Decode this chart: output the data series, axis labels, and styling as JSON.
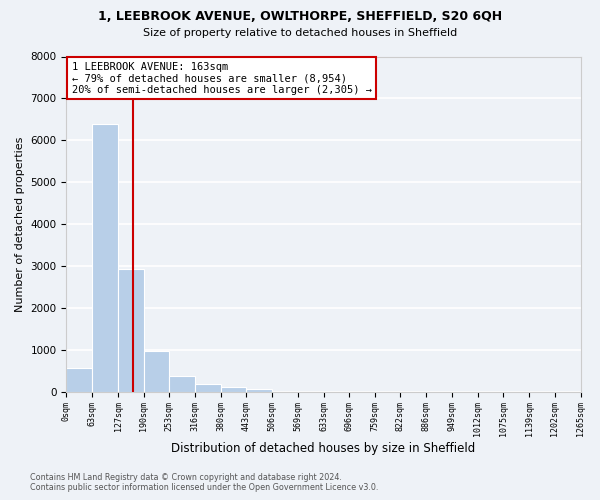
{
  "title": "1, LEEBROOK AVENUE, OWLTHORPE, SHEFFIELD, S20 6QH",
  "subtitle": "Size of property relative to detached houses in Sheffield",
  "xlabel": "Distribution of detached houses by size in Sheffield",
  "ylabel": "Number of detached properties",
  "bar_edges": [
    0,
    63,
    127,
    190,
    253,
    316,
    380,
    443,
    506,
    569,
    633,
    696,
    759,
    822,
    886,
    949,
    1012,
    1075,
    1139,
    1202,
    1265
  ],
  "bar_heights": [
    560,
    6380,
    2930,
    980,
    380,
    190,
    110,
    60,
    0,
    0,
    0,
    0,
    0,
    0,
    0,
    0,
    0,
    0,
    0,
    0
  ],
  "bar_color": "#b8cfe8",
  "bar_edge_color": "#b8cfe8",
  "property_line_x": 163,
  "property_line_color": "#cc0000",
  "ylim": [
    0,
    8000
  ],
  "yticks": [
    0,
    1000,
    2000,
    3000,
    4000,
    5000,
    6000,
    7000,
    8000
  ],
  "annotation_title": "1 LEEBROOK AVENUE: 163sqm",
  "annotation_line1": "← 79% of detached houses are smaller (8,954)",
  "annotation_line2": "20% of semi-detached houses are larger (2,305) →",
  "annotation_box_color": "#ffffff",
  "annotation_box_edgecolor": "#cc0000",
  "footer_line1": "Contains HM Land Registry data © Crown copyright and database right 2024.",
  "footer_line2": "Contains public sector information licensed under the Open Government Licence v3.0.",
  "background_color": "#eef2f7",
  "grid_color": "#ffffff",
  "tick_labels": [
    "0sqm",
    "63sqm",
    "127sqm",
    "190sqm",
    "253sqm",
    "316sqm",
    "380sqm",
    "443sqm",
    "506sqm",
    "569sqm",
    "633sqm",
    "696sqm",
    "759sqm",
    "822sqm",
    "886sqm",
    "949sqm",
    "1012sqm",
    "1075sqm",
    "1139sqm",
    "1202sqm",
    "1265sqm"
  ]
}
